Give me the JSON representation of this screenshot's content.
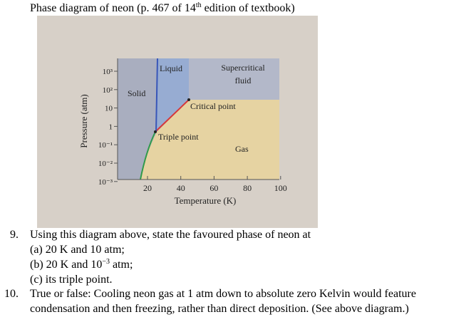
{
  "header": {
    "title": [
      "Phase diagram of neon (p. 467 of 14",
      "th",
      " edition of textbook)"
    ]
  },
  "figure": {
    "y_axis_label": "Pressure (atm)",
    "x_axis_label": "Temperature (K)",
    "y_ticks": [
      "10³",
      "10²",
      "10",
      "1",
      "10⁻¹",
      "10⁻²",
      "10⁻³"
    ],
    "x_ticks": [
      "20",
      "40",
      "60",
      "80",
      "100"
    ],
    "regions": {
      "solid": "Solid",
      "liquid": "Liquid",
      "supercritical": [
        "Supercritical",
        "fluid"
      ],
      "gas": "Gas"
    },
    "points": {
      "critical": "Critical point",
      "triple": "Triple point"
    }
  },
  "questions": [
    {
      "number": "9.",
      "lines": [
        "Using this diagram above, state the favoured phase of neon at"
      ],
      "parts": [
        [
          "(a) 20 K and 10 atm;"
        ],
        [
          "(b) 20 K and 10",
          "−3",
          " atm;"
        ],
        [
          "(c) its triple point."
        ]
      ]
    },
    {
      "number": "10.",
      "lines": [
        "True or false:  Cooling neon gas at 1 atm down to absolute zero Kelvin would feature",
        "condensation and then freezing, rather than direct deposition.  (See above diagram.)"
      ]
    }
  ]
}
